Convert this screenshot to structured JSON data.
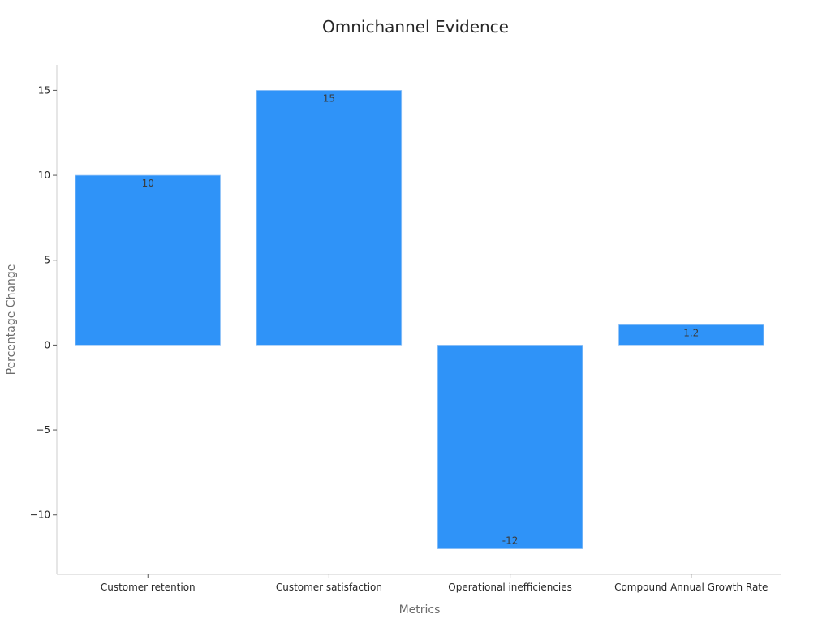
{
  "chart_data": {
    "type": "bar",
    "title": "Omnichannel Evidence",
    "xlabel": "Metrics",
    "ylabel": "Percentage Change",
    "categories": [
      "Customer retention",
      "Customer satisfaction",
      "Operational inefficiencies",
      "Compound Annual Growth Rate"
    ],
    "values": [
      10,
      15,
      -12,
      1.2
    ],
    "data_labels": [
      "10",
      "15",
      "-12",
      "1.2"
    ],
    "ylim": [
      -13.5,
      16.5
    ],
    "yticks": [
      15,
      10,
      5,
      0,
      -5,
      -10
    ],
    "ytick_labels": [
      "15",
      "10",
      "5",
      "0",
      "−5",
      "−10"
    ],
    "bar_color": "#2f93f8",
    "grid": false,
    "legend": "none"
  }
}
